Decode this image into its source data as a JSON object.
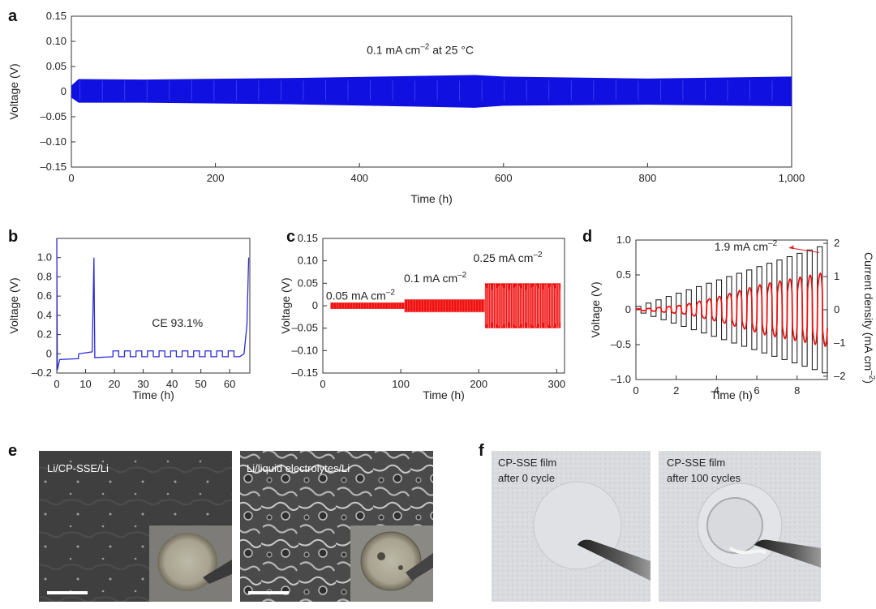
{
  "chart_data": [
    {
      "panel": "a",
      "type": "line",
      "xlabel": "Time (h)",
      "ylabel": "Voltage (V)",
      "xlim": [
        0,
        1000
      ],
      "ylim": [
        -0.15,
        0.15
      ],
      "xticks": [
        "0",
        "200",
        "400",
        "600",
        "800",
        "1,000"
      ],
      "yticks": [
        "0.15",
        "0.10",
        "0.05",
        "0",
        "–0.05",
        "–0.10",
        "–0.15"
      ],
      "annotation": "0.1 mA cm–2 at 25 °C",
      "color": "#1010e0",
      "series": [
        {
          "x": [
            0,
            10,
            100,
            300,
            560,
            600,
            800,
            1000
          ],
          "y_upper": [
            0.012,
            0.025,
            0.024,
            0.027,
            0.033,
            0.03,
            0.026,
            0.03
          ],
          "y_lower": [
            -0.012,
            -0.022,
            -0.022,
            -0.025,
            -0.032,
            -0.028,
            -0.026,
            -0.029
          ]
        }
      ]
    },
    {
      "panel": "b",
      "type": "line",
      "xlabel": "Time (h)",
      "ylabel": "Voltage (V)",
      "xlim": [
        0,
        67
      ],
      "ylim": [
        -0.2,
        1.2
      ],
      "xticks": [
        "0",
        "10",
        "20",
        "30",
        "40",
        "50",
        "60"
      ],
      "yticks": [
        "1.0",
        "0.8",
        "0.6",
        "0.4",
        "0.2",
        "0",
        "–0.2"
      ],
      "annotation": "CE 93.1%",
      "color": "#2b2bd6"
    },
    {
      "panel": "c",
      "type": "line",
      "xlabel": "Time (h)",
      "ylabel": "Voltage (V)",
      "xlim": [
        0,
        310
      ],
      "ylim": [
        -0.15,
        0.15
      ],
      "xticks": [
        "0",
        "100",
        "200",
        "300"
      ],
      "yticks": [
        "0.15",
        "0.10",
        "0.05",
        "0",
        "–0.05",
        "–0.10",
        "–0.15"
      ],
      "annotations": [
        "0.05 mA cm–2",
        "0.1 mA cm–2",
        "0.25 mA cm–2"
      ],
      "color": "#ee1111",
      "series": [
        {
          "name": "0.05 mA cm–2",
          "x_range": [
            10,
            105
          ],
          "amplitude": 0.007
        },
        {
          "name": "0.1 mA cm–2",
          "x_range": [
            105,
            208
          ],
          "amplitude": 0.014
        },
        {
          "name": "0.25 mA cm–2",
          "x_range": [
            208,
            305
          ],
          "amplitude": 0.05
        }
      ]
    },
    {
      "panel": "d",
      "type": "line",
      "xlabel": "Time (h)",
      "ylabel": "Voltage (V)",
      "ylabel_right": "Current density (mA cm–2)",
      "xlim": [
        0,
        9.5
      ],
      "ylim": [
        -1.0,
        1.0
      ],
      "ylim_right": [
        -2.1,
        2.1
      ],
      "xticks": [
        "0",
        "2",
        "4",
        "6",
        "8"
      ],
      "yticks": [
        "1.0",
        "0.5",
        "0",
        "–0.5",
        "–1.0"
      ],
      "yticks_right": [
        "2",
        "1",
        "0",
        "–1",
        "–2"
      ],
      "annotation": "1.9 mA cm–2",
      "color_voltage": "#ee1111",
      "color_current": "#111111",
      "current_steps_mA_cm2": [
        0.1,
        0.2,
        0.3,
        0.4,
        0.5,
        0.6,
        0.7,
        0.8,
        0.9,
        1.0,
        1.1,
        1.2,
        1.3,
        1.4,
        1.5,
        1.6,
        1.7,
        1.8,
        1.9
      ],
      "voltage_peaks_V": [
        0.02,
        0.03,
        0.05,
        0.07,
        0.09,
        0.13,
        0.18,
        0.23,
        0.28,
        0.34,
        0.4,
        0.46,
        0.52,
        0.56,
        0.6,
        0.64,
        0.68,
        0.72,
        0.76
      ]
    }
  ],
  "panel_e": {
    "letter": "e",
    "left_label": "Li/CP-SSE/Li",
    "right_label": "Li/liquid electrolytes/Li"
  },
  "panel_f": {
    "letter": "f",
    "left_label_line1": "CP-SSE film",
    "left_label_line2": "after 0 cycle",
    "right_label_line1": "CP-SSE film",
    "right_label_line2": "after 100 cycles"
  }
}
